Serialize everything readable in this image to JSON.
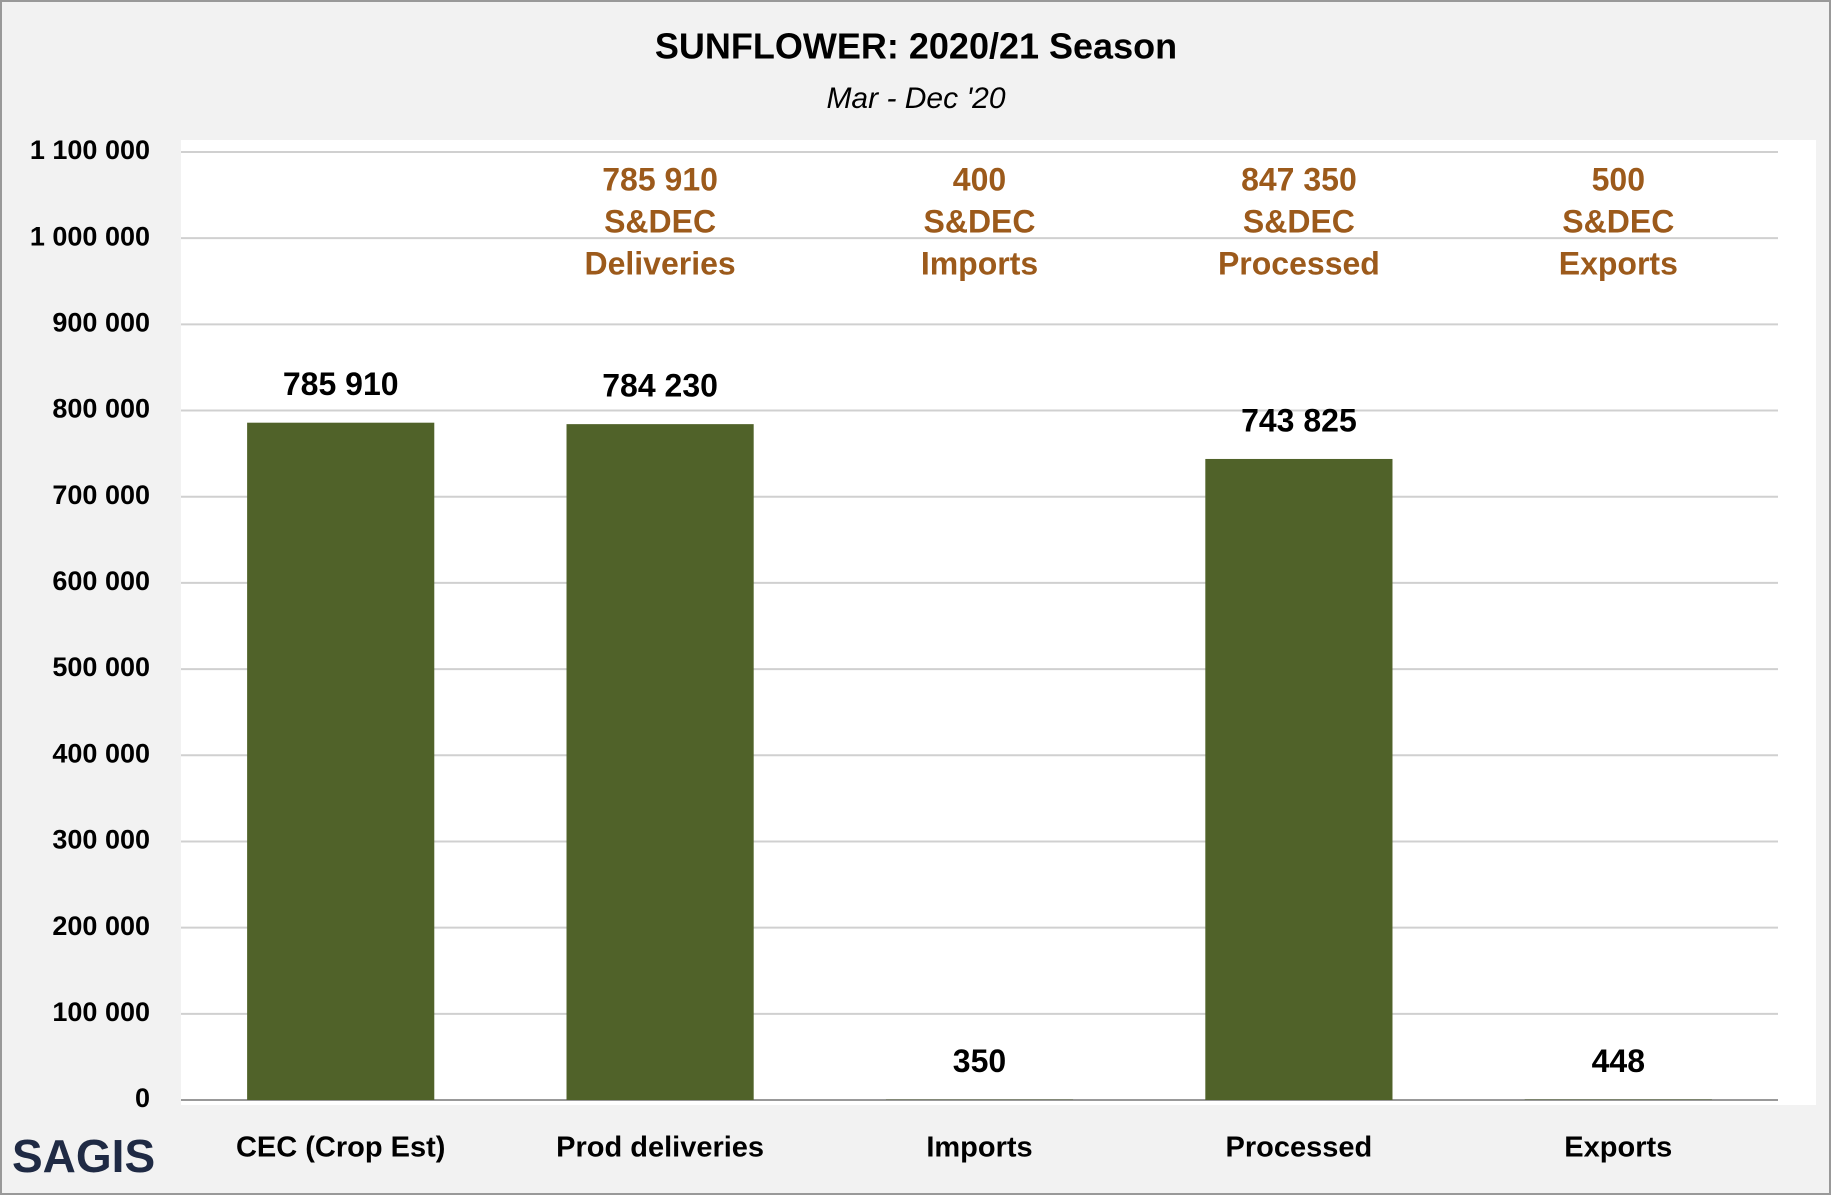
{
  "chart_data": {
    "type": "bar",
    "title": "SUNFLOWER: 2020/21 Season",
    "subtitle": "Mar - Dec '20",
    "categories": [
      "CEC (Crop Est)",
      "Prod deliveries",
      "Imports",
      "Processed",
      "Exports"
    ],
    "values": [
      785910,
      784230,
      350,
      743825,
      448
    ],
    "value_labels": [
      "785 910",
      "784 230",
      "350",
      "743 825",
      "448"
    ],
    "color": "#506229",
    "ylim": [
      0,
      1100000
    ],
    "yticks": [
      0,
      {
        "value": 100000,
        "label": "100 000"
      },
      {
        "value": 200000,
        "label": "200 000"
      },
      {
        "value": 300000,
        "label": "300 000"
      },
      {
        "value": 400000,
        "label": "400 000"
      },
      {
        "value": 500000,
        "label": "500 000"
      },
      {
        "value": 600000,
        "label": "600 000"
      },
      {
        "value": 700000,
        "label": "700 000"
      },
      {
        "value": 800000,
        "label": "800 000"
      },
      {
        "value": 900000,
        "label": "900 000"
      },
      {
        "value": 1000000,
        "label": "1 000 000"
      },
      {
        "value": 1100000,
        "label": "1 100 000"
      }
    ],
    "grid": true,
    "annotations": [
      null,
      [
        "785 910",
        "S&DEC",
        "Deliveries"
      ],
      [
        "400",
        "S&DEC",
        "Imports"
      ],
      [
        "847 350",
        "S&DEC",
        "Processed"
      ],
      [
        "500",
        "S&DEC",
        "Exports"
      ]
    ],
    "annotation_color": "#9c5a1b",
    "logo": "SAGIS"
  }
}
